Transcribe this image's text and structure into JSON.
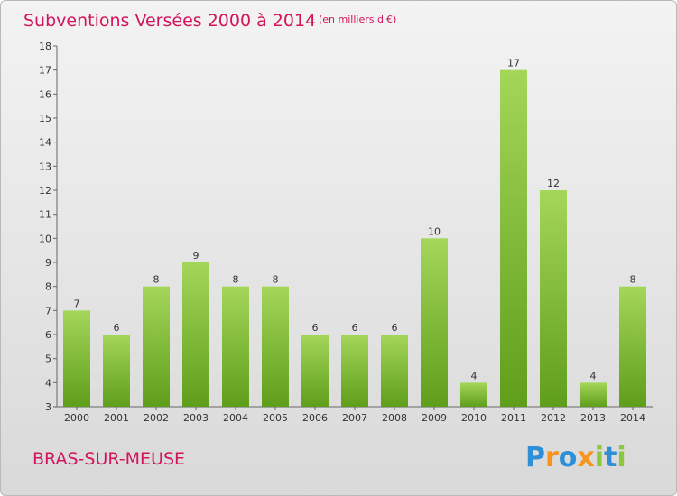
{
  "title": "Subventions Versées 2000 à 2014",
  "subtitle": "(en milliers d'€)",
  "place": "BRAS-SUR-MEUSE",
  "logo": {
    "letters": [
      "P",
      "r",
      "o",
      "x",
      "i",
      "t",
      "i"
    ],
    "colors": [
      "#2e8fd6",
      "#f7941d",
      "#2e8fd6",
      "#f7941d",
      "#8dc63f",
      "#2e8fd6",
      "#8dc63f"
    ]
  },
  "colors": {
    "bar_top": "#a4d65a",
    "bar_bottom": "#5f9e1a",
    "title": "#d4145a",
    "axis": "#666666"
  },
  "chart_data": {
    "type": "bar",
    "title": "Subventions Versées 2000 à 2014",
    "subtitle": "(en milliers d'€)",
    "categories": [
      "2000",
      "2001",
      "2002",
      "2003",
      "2004",
      "2005",
      "2006",
      "2007",
      "2008",
      "2009",
      "2010",
      "2011",
      "2012",
      "2013",
      "2014"
    ],
    "values": [
      7,
      6,
      8,
      9,
      8,
      8,
      6,
      6,
      6,
      10,
      4,
      17,
      12,
      4,
      8
    ],
    "ylim": [
      3,
      18
    ],
    "yticks": [
      3,
      4,
      5,
      6,
      7,
      8,
      9,
      10,
      11,
      12,
      13,
      14,
      15,
      16,
      17,
      18
    ],
    "grid": false,
    "legend": "none",
    "xlabel": "",
    "ylabel": ""
  }
}
